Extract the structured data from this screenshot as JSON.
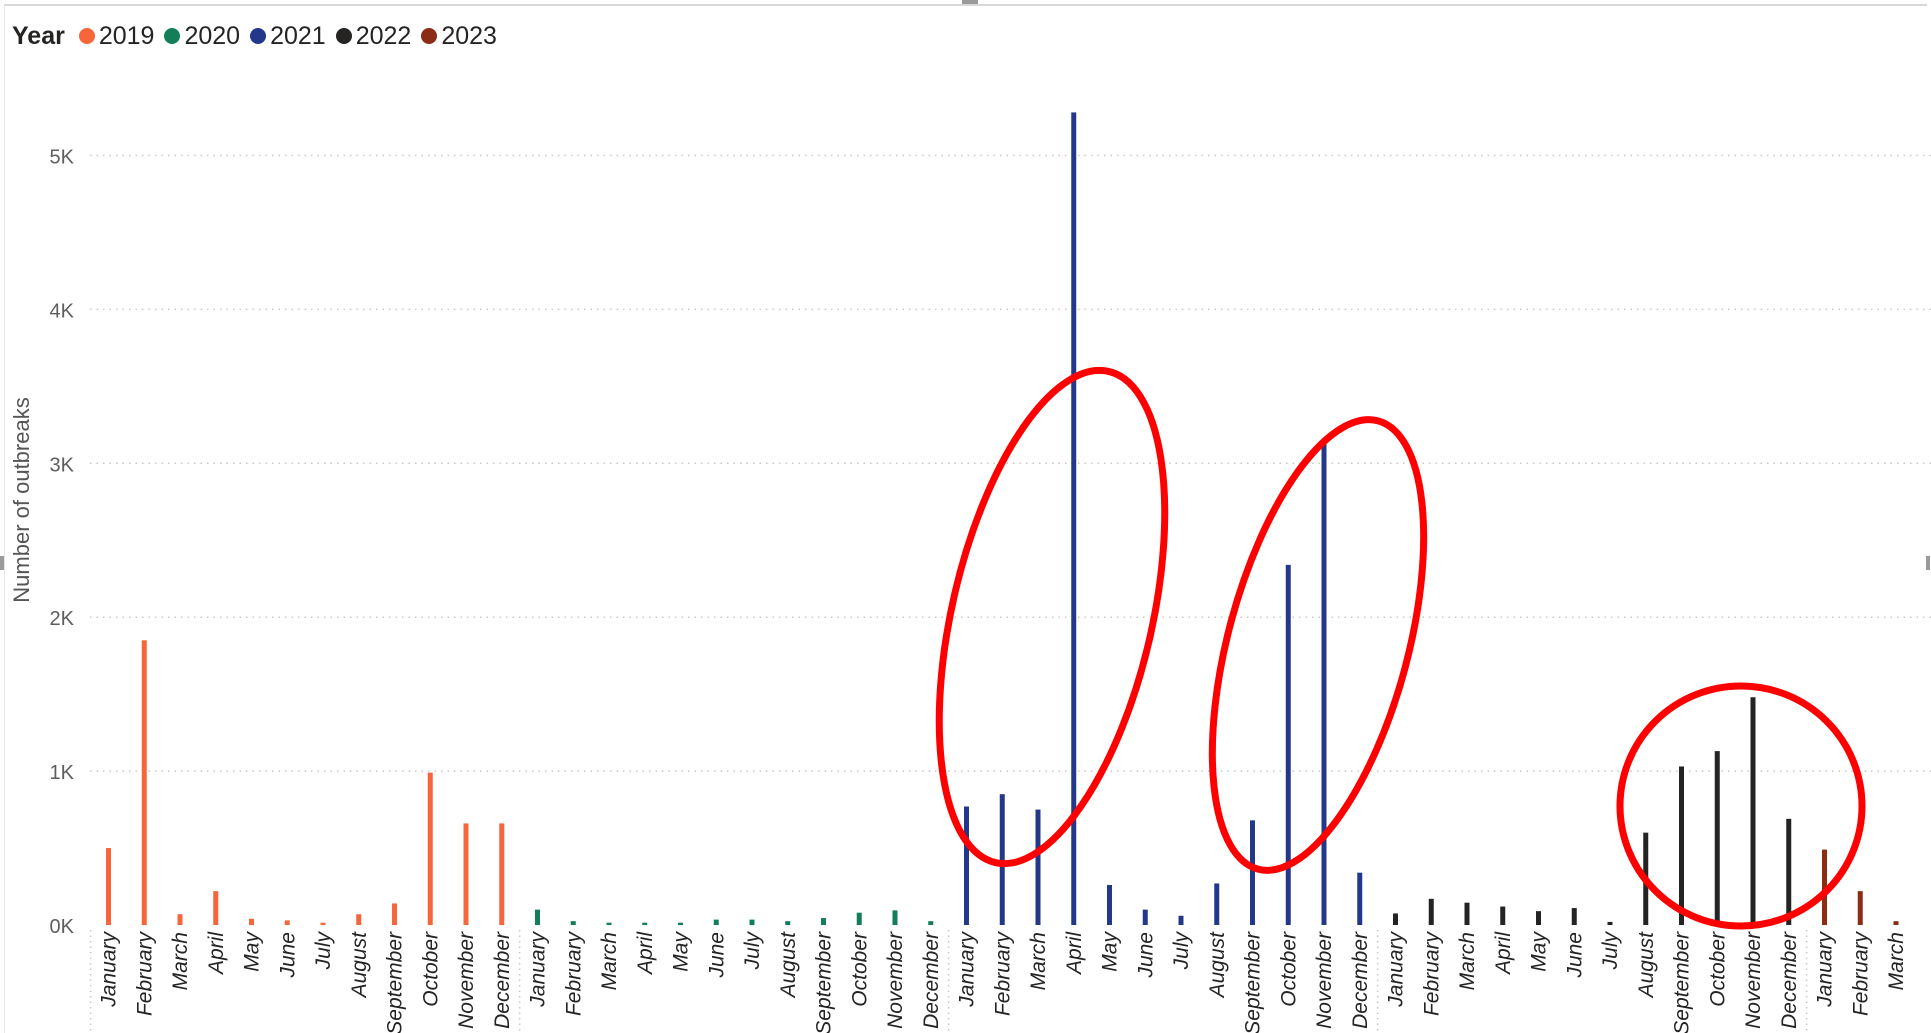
{
  "legend": {
    "title": "Year",
    "items": [
      {
        "label": "2019",
        "color": "#F7653A"
      },
      {
        "label": "2020",
        "color": "#137E58"
      },
      {
        "label": "2021",
        "color": "#23388A"
      },
      {
        "label": "2022",
        "color": "#252423"
      },
      {
        "label": "2023",
        "color": "#8B2C14"
      }
    ]
  },
  "chart_data": {
    "type": "bar",
    "ylabel": "Number of outbreaks",
    "xlabel": "",
    "ylim": [
      0,
      5500
    ],
    "yticks": [
      0,
      1000,
      2000,
      3000,
      4000,
      5000
    ],
    "ytick_labels": [
      "0K",
      "1K",
      "2K",
      "3K",
      "4K",
      "5K"
    ],
    "grid": "horizontal dotted",
    "legend_position": "top-left",
    "series": [
      {
        "name": "2019",
        "color": "#F7653A",
        "categories": [
          "January",
          "February",
          "March",
          "April",
          "May",
          "June",
          "July",
          "August",
          "September",
          "October",
          "November",
          "December"
        ],
        "values": [
          500,
          1850,
          70,
          220,
          40,
          30,
          15,
          70,
          140,
          990,
          660,
          660
        ]
      },
      {
        "name": "2020",
        "color": "#137E58",
        "categories": [
          "January",
          "February",
          "March",
          "April",
          "May",
          "June",
          "July",
          "August",
          "September",
          "October",
          "November",
          "December"
        ],
        "values": [
          100,
          25,
          15,
          15,
          15,
          35,
          35,
          25,
          45,
          80,
          95,
          25
        ]
      },
      {
        "name": "2021",
        "color": "#23388A",
        "categories": [
          "January",
          "February",
          "March",
          "April",
          "May",
          "June",
          "July",
          "August",
          "September",
          "October",
          "November",
          "December"
        ],
        "values": [
          770,
          850,
          750,
          5280,
          260,
          100,
          60,
          270,
          680,
          2340,
          3150,
          340
        ]
      },
      {
        "name": "2022",
        "color": "#252423",
        "categories": [
          "January",
          "February",
          "March",
          "April",
          "May",
          "June",
          "July",
          "August",
          "September",
          "October",
          "November",
          "December"
        ],
        "values": [
          75,
          170,
          145,
          120,
          90,
          110,
          20,
          600,
          1030,
          1130,
          1480,
          690
        ]
      },
      {
        "name": "2023",
        "color": "#8B2C14",
        "categories": [
          "January",
          "February",
          "March"
        ],
        "values": [
          490,
          220,
          25
        ]
      }
    ],
    "annotations": [
      {
        "type": "ellipse",
        "color": "#FF0000",
        "months": [
          "2021 January",
          "2021 April"
        ]
      },
      {
        "type": "ellipse",
        "color": "#FF0000",
        "months": [
          "2021 September",
          "2021 November"
        ]
      },
      {
        "type": "ellipse",
        "color": "#FF0000",
        "months": [
          "2022 August",
          "2022 December"
        ]
      }
    ]
  }
}
